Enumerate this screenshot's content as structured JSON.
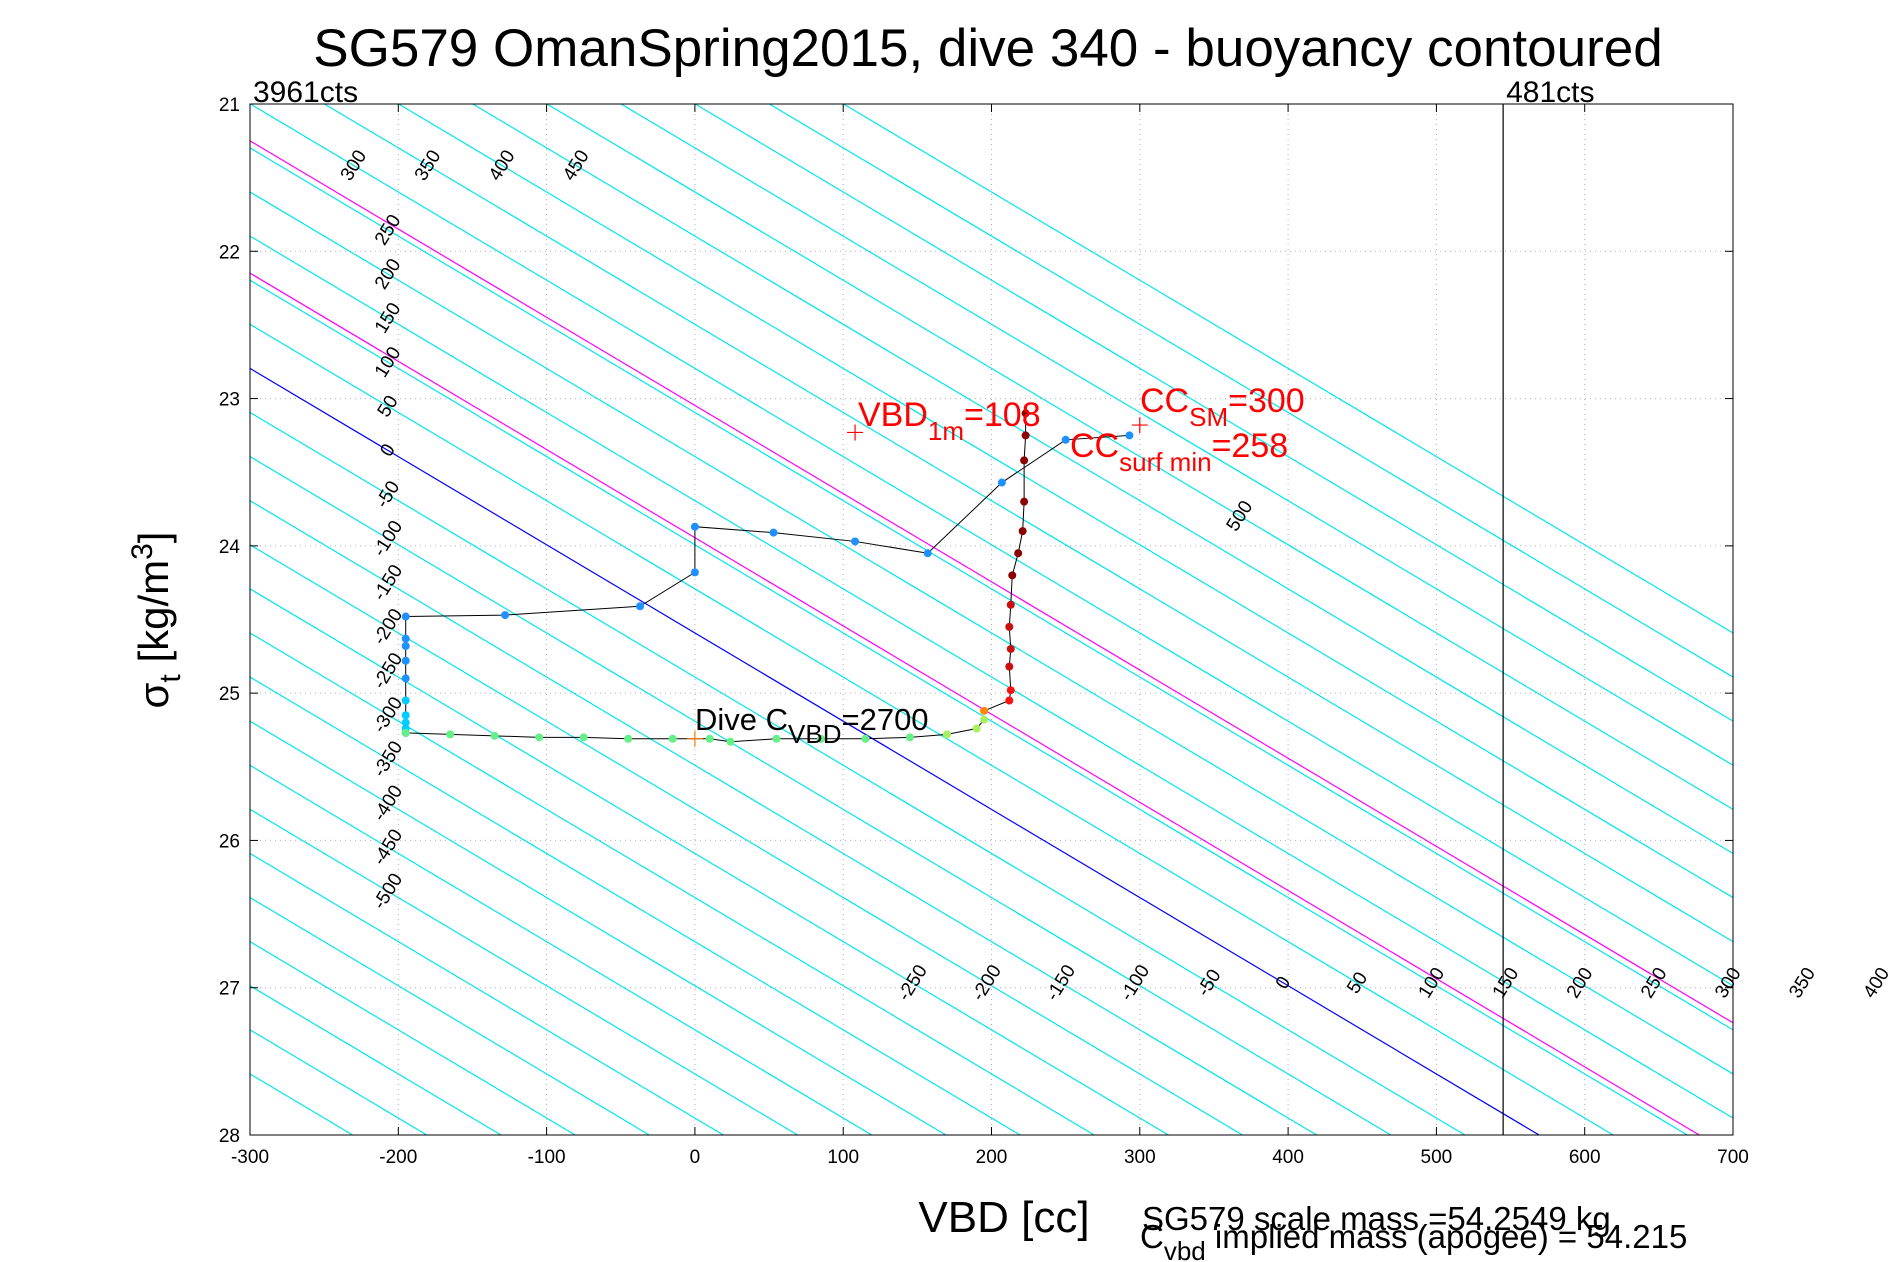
{
  "chart_data": {
    "type": "scatter",
    "title": "SG579 OmanSpring2015, dive 340 - buoyancy contoured",
    "xlabel": "VBD [cc]",
    "ylabel_main": "σ",
    "ylabel_sub": "t",
    "ylabel_unit": " [kg/m",
    "ylabel_sup": "3",
    "ylabel_close": "]",
    "xlim": [
      -300,
      700
    ],
    "ylim": [
      21,
      28
    ],
    "y_reversed": true,
    "grid": true,
    "xticks": [
      "-300",
      "-200",
      "-100",
      "0",
      "100",
      "200",
      "300",
      "400",
      "500",
      "600",
      "700"
    ],
    "yticks": [
      "21",
      "22",
      "23",
      "24",
      "25",
      "26",
      "27",
      "28"
    ],
    "vbd_limits": [
      {
        "x": -300,
        "label": "3961cts"
      },
      {
        "x": 545,
        "label": "481cts"
      }
    ],
    "buoyancy_contours": {
      "levels": [
        -500,
        -450,
        -400,
        -350,
        -300,
        -250,
        -200,
        -150,
        -100,
        -50,
        0,
        50,
        100,
        150,
        200,
        250,
        300,
        350,
        400,
        450,
        500
      ],
      "top_labels": [
        -500,
        -450,
        -400,
        -350,
        -300,
        -250,
        -200,
        -150,
        -100,
        -50,
        0,
        50,
        100,
        150,
        200,
        250,
        300,
        350,
        400,
        450,
        500
      ],
      "bottom_labels": [
        -250,
        -200,
        -150,
        -100,
        -50,
        0,
        50,
        100,
        150,
        200,
        250,
        300,
        350,
        400,
        450
      ],
      "colors": {
        "default": "#00e5ee",
        "zero": "#0000ff",
        "highlight": "#ff00ff"
      },
      "highlight_levels": [
        108,
        258
      ]
    },
    "down_cast": [
      {
        "x": -195,
        "y": 25.27
      },
      {
        "x": -195,
        "y": 25.24
      },
      {
        "x": -195,
        "y": 25.2
      },
      {
        "x": -195,
        "y": 25.15
      },
      {
        "x": -195,
        "y": 25.05
      },
      {
        "x": -195,
        "y": 24.9
      },
      {
        "x": -195,
        "y": 24.78
      },
      {
        "x": -195,
        "y": 24.68
      },
      {
        "x": -195,
        "y": 24.63
      },
      {
        "x": -195,
        "y": 24.48
      },
      {
        "x": -128,
        "y": 24.47
      },
      {
        "x": -37,
        "y": 24.41
      },
      {
        "x": 0,
        "y": 24.18
      },
      {
        "x": 0,
        "y": 23.87
      },
      {
        "x": 53,
        "y": 23.91
      },
      {
        "x": 108,
        "y": 23.97
      },
      {
        "x": 157,
        "y": 24.05
      },
      {
        "x": 207,
        "y": 23.57
      },
      {
        "x": 250,
        "y": 23.28
      },
      {
        "x": 293,
        "y": 23.25
      }
    ],
    "deep_segment": [
      {
        "x": -195,
        "y": 25.27
      },
      {
        "x": -165,
        "y": 25.28
      },
      {
        "x": -135,
        "y": 25.29
      },
      {
        "x": -105,
        "y": 25.3
      },
      {
        "x": -75,
        "y": 25.3
      },
      {
        "x": -45,
        "y": 25.31
      },
      {
        "x": -15,
        "y": 25.31
      },
      {
        "x": 10,
        "y": 25.31
      },
      {
        "x": 24,
        "y": 25.33
      },
      {
        "x": 55,
        "y": 25.31
      },
      {
        "x": 85,
        "y": 25.31
      },
      {
        "x": 115,
        "y": 25.31
      },
      {
        "x": 145,
        "y": 25.3
      },
      {
        "x": 170,
        "y": 25.28
      },
      {
        "x": 190,
        "y": 25.24
      },
      {
        "x": 195,
        "y": 25.18
      }
    ],
    "up_cast": [
      {
        "x": 195,
        "y": 25.12
      },
      {
        "x": 212,
        "y": 25.05
      },
      {
        "x": 213,
        "y": 24.98
      },
      {
        "x": 212,
        "y": 24.82
      },
      {
        "x": 213,
        "y": 24.7
      },
      {
        "x": 212,
        "y": 24.55
      },
      {
        "x": 213,
        "y": 24.4
      },
      {
        "x": 214,
        "y": 24.2
      },
      {
        "x": 218,
        "y": 24.05
      },
      {
        "x": 221,
        "y": 23.9
      },
      {
        "x": 222,
        "y": 23.7
      },
      {
        "x": 222,
        "y": 23.42
      },
      {
        "x": 223,
        "y": 23.25
      },
      {
        "x": 223,
        "y": 23.1
      }
    ],
    "markers": [
      {
        "x": 108,
        "y": 23.23,
        "color": "#ff0000"
      },
      {
        "x": 300,
        "y": 23.18,
        "color": "#ff0000"
      },
      {
        "x": 0,
        "y": 25.31,
        "color": "#ff7700"
      }
    ],
    "annotations": {
      "vbd_1m": {
        "main": "VBD",
        "sub": "1m",
        "value": "=108"
      },
      "cc_sm": {
        "main": "CC",
        "sub": "SM",
        "value": "=300"
      },
      "cc_surf": {
        "main": "CC",
        "sub": "surf min",
        "value": "=258"
      },
      "dive_c": {
        "main": "Dive C",
        "sub": "VBD",
        "value": "=2700"
      }
    },
    "footer": {
      "scale_mass": "SG579 scale mass =54.2549 kg",
      "implied_main": "C",
      "implied_sub": "vbd",
      "implied_rest": " implied mass (apogee) = 54.215"
    }
  }
}
